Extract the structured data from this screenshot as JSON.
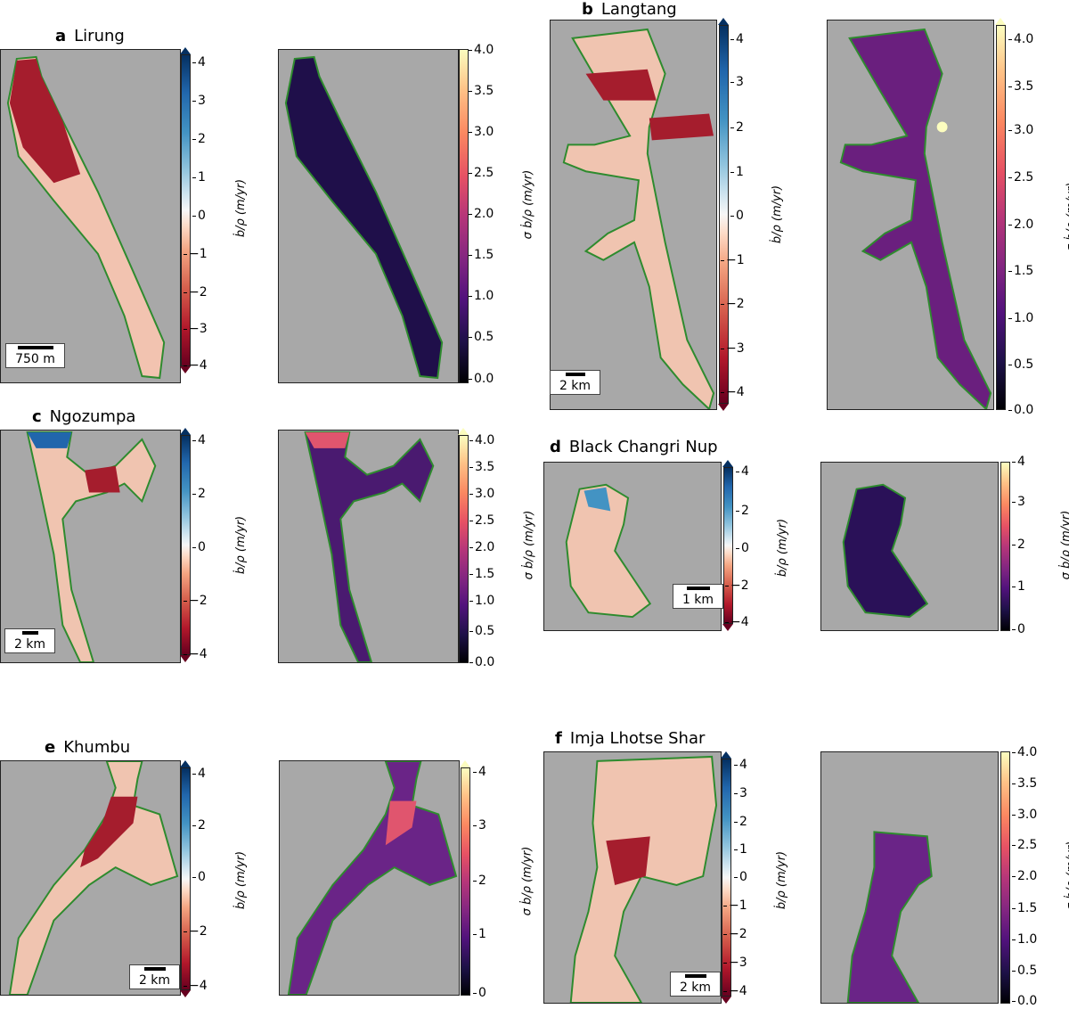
{
  "panels": {
    "a": {
      "letter": "a",
      "name": "Lirung",
      "scale": "750 m"
    },
    "b": {
      "letter": "b",
      "name": "Langtang",
      "scale": "2 km"
    },
    "c": {
      "letter": "c",
      "name": "Ngozumpa",
      "scale": "2 km"
    },
    "d": {
      "letter": "d",
      "name": "Black Changri Nup",
      "scale": "1 km"
    },
    "e": {
      "letter": "e",
      "name": "Khumbu",
      "scale": "2 km"
    },
    "f": {
      "letter": "f",
      "name": "Imja Lhotse Shar",
      "scale": "2 km"
    }
  },
  "colorbars": {
    "div_label": "ḃ/ρ (m/yr)",
    "sig_label": "σ ḃ/ρ (m/yr)",
    "div_ticks_full": [
      "4",
      "3",
      "2",
      "1",
      "0",
      "−1",
      "−2",
      "−3",
      "−4"
    ],
    "div_ticks_even": [
      "4",
      "2",
      "0",
      "−2",
      "−4"
    ],
    "sig_ticks_half": [
      "4.0",
      "3.5",
      "3.0",
      "2.5",
      "2.0",
      "1.5",
      "1.0",
      "0.5",
      "0.0"
    ],
    "sig_ticks_int": [
      "4",
      "3",
      "2",
      "1",
      "0"
    ],
    "colormap_div": "RdBu",
    "colormap_sig": "magma",
    "outline_color": "#2e8b2e"
  }
}
